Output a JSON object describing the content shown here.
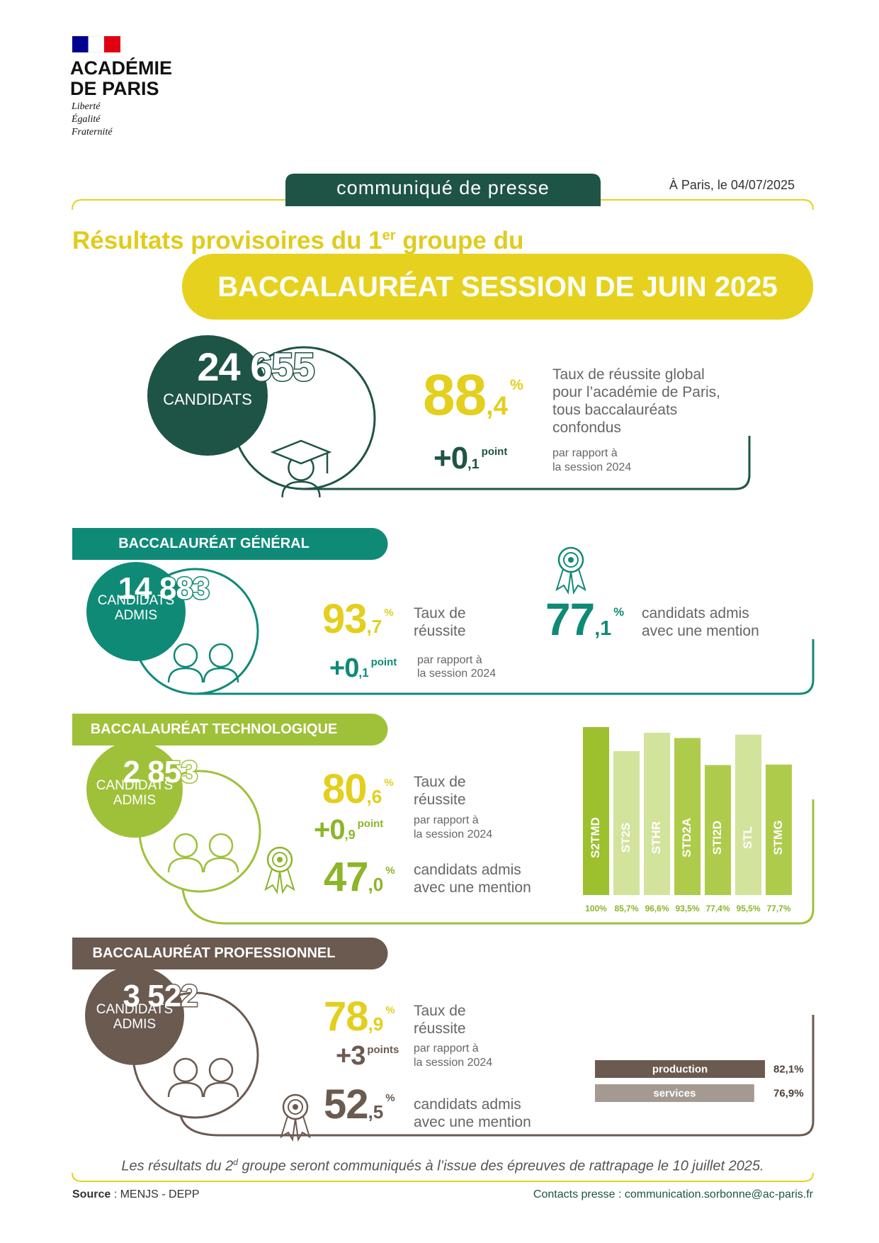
{
  "header": {
    "org_lines": [
      "ACADÉMIE",
      "DE PARIS"
    ],
    "motto": [
      "Liberté",
      "Égalité",
      "Fraternité"
    ],
    "tag": "communiqué de presse",
    "date": "À Paris, le 04/07/2025"
  },
  "title": {
    "pre": "Résultats provisoires du 1",
    "sup": "er",
    "post": " groupe du",
    "banner": "BACCALAURÉAT SESSION DE JUIN 2025"
  },
  "overall": {
    "count": "24 655",
    "count_label": [
      "CANDIDATS"
    ],
    "rate": {
      "int": "88",
      "dec": ",4",
      "unit": "%"
    },
    "rate_text": [
      "Taux de réussite global",
      "pour l’académie de Paris,",
      "tous baccalauréats",
      "confondus"
    ],
    "change": {
      "int": "+0",
      "dec": ",1",
      "unit": "point"
    },
    "change_text": [
      "par rapport à",
      "la session 2024"
    ]
  },
  "general": {
    "heading": "BACCALAURÉAT GÉNÉRAL",
    "count": "14 883",
    "count_label": [
      "CANDIDATS",
      "ADMIS"
    ],
    "rate": {
      "int": "93",
      "dec": ",7",
      "unit": "%"
    },
    "rate_text": [
      "Taux de",
      "réussite"
    ],
    "change": {
      "int": "+0",
      "dec": ",1",
      "unit": "point"
    },
    "change_text": [
      "par rapport à",
      "la session 2024"
    ],
    "mention": {
      "int": "77",
      "dec": ",1",
      "unit": "%"
    },
    "mention_text": [
      "candidats admis",
      "avec une mention"
    ]
  },
  "technologique": {
    "heading": "BACCALAURÉAT TECHNOLOGIQUE",
    "count": "2 853",
    "count_label": [
      "CANDIDATS",
      "ADMIS"
    ],
    "rate": {
      "int": "80",
      "dec": ",6",
      "unit": "%"
    },
    "rate_text": [
      "Taux de",
      "réussite"
    ],
    "change": {
      "int": "+0",
      "dec": ",9",
      "unit": "point"
    },
    "change_text": [
      "par rapport à",
      "la session 2024"
    ],
    "mention": {
      "int": "47",
      "dec": ",0",
      "unit": "%"
    },
    "mention_text": [
      "candidats admis",
      "avec une mention"
    ]
  },
  "professionnel": {
    "heading": "BACCALAURÉAT PROFESSIONNEL",
    "count": "3 522",
    "count_label": [
      "CANDIDATS",
      "ADMIS"
    ],
    "rate": {
      "int": "78",
      "dec": ",9",
      "unit": "%"
    },
    "rate_text": [
      "Taux de",
      "réussite"
    ],
    "change": {
      "int": "+3",
      "unit": "points"
    },
    "change_text": [
      "par rapport à",
      "la session 2024"
    ],
    "mention": {
      "int": "52",
      "dec": ",5",
      "unit": "%"
    },
    "mention_text": [
      "candidats admis",
      "avec une mention"
    ]
  },
  "chart_data": [
    {
      "type": "bar",
      "categories": [
        "S2TMD",
        "ST2S",
        "STHR",
        "STD2A",
        "STI2D",
        "STL",
        "STMG"
      ],
      "values": [
        100,
        85.7,
        96.6,
        93.5,
        77.4,
        95.5,
        77.7
      ],
      "value_labels": [
        "100%",
        "85,7%",
        "96,6%",
        "93,5%",
        "77,4%",
        "95,5%",
        "77,7%"
      ],
      "colors": [
        "#9dc02e",
        "#d2e39c",
        "#d2e39c",
        "#afcb4c",
        "#afcb4c",
        "#d2e39c",
        "#afcb4c"
      ]
    },
    {
      "type": "barh",
      "categories": [
        "production",
        "services"
      ],
      "values": [
        82.1,
        76.9
      ],
      "value_labels": [
        "82,1%",
        "76,9%"
      ],
      "colors": [
        "#6b5a50",
        "#a59a92"
      ]
    }
  ],
  "footer": {
    "note_pre": "Les résultats du 2",
    "note_sup": "d",
    "note_post": " groupe seront communiqués à l’issue des épreuves de rattrapage le 10 juillet 2025.",
    "source_label": "Source",
    "source": " : MENJS - DEPP",
    "contacts": "Contacts presse : communication.sorbonne@ac-paris.fr"
  }
}
